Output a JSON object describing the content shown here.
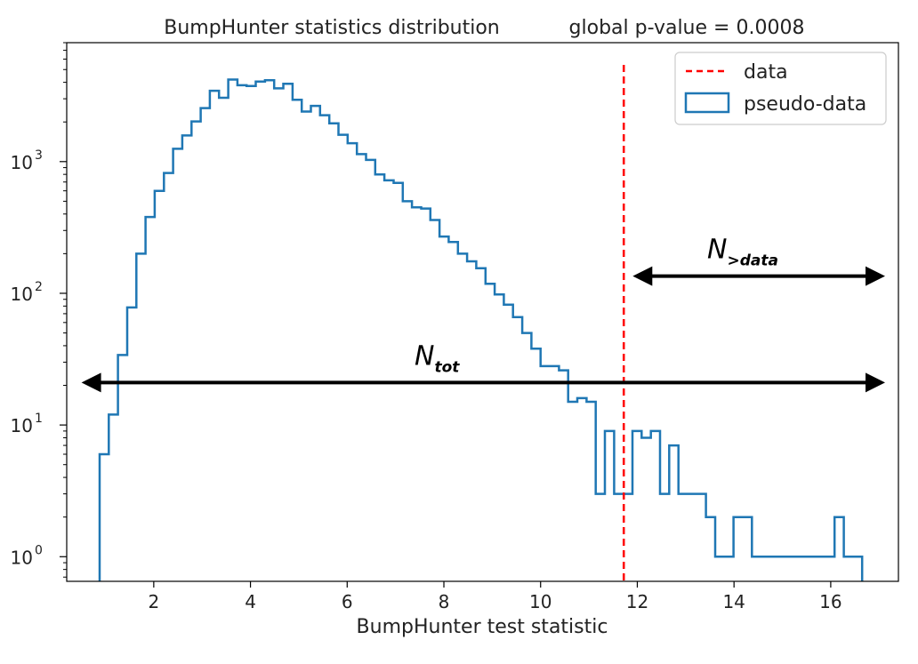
{
  "chart_data": {
    "type": "histogram",
    "title": "BumpHunter statistics distribution",
    "title_right": "global p-value = 0.0008",
    "xlabel": "BumpHunter test statistic",
    "ylabel": "",
    "xlim": [
      0.2,
      17.4
    ],
    "ylim": [
      0.65,
      8000
    ],
    "yscale": "log",
    "grid": false,
    "legend_position": "top-right",
    "x_ticks": [
      "2",
      "4",
      "6",
      "8",
      "10",
      "12",
      "14",
      "16"
    ],
    "y_ticks": [
      {
        "value": 1,
        "base": "10",
        "exp": "0"
      },
      {
        "value": 10,
        "base": "10",
        "exp": "1"
      },
      {
        "value": 100,
        "base": "10",
        "exp": "2"
      },
      {
        "value": 1000,
        "base": "10",
        "exp": "3"
      }
    ],
    "data_line": {
      "x": 11.72,
      "label": "data",
      "color": "#ff0000"
    },
    "pseudo_series": {
      "name": "pseudo-data",
      "color": "#1f77b4",
      "bin_edges": [
        0.88,
        1.07,
        1.26,
        1.45,
        1.64,
        1.83,
        2.02,
        2.21,
        2.4,
        2.59,
        2.78,
        2.97,
        3.16,
        3.35,
        3.54,
        3.73,
        3.92,
        4.11,
        4.3,
        4.49,
        4.68,
        4.87,
        5.06,
        5.25,
        5.44,
        5.63,
        5.82,
        6.01,
        6.2,
        6.39,
        6.58,
        6.77,
        6.96,
        7.15,
        7.34,
        7.53,
        7.72,
        7.91,
        8.1,
        8.29,
        8.48,
        8.67,
        8.86,
        9.05,
        9.24,
        9.43,
        9.62,
        9.81,
        10.0,
        10.19,
        10.38,
        10.57,
        10.76,
        10.95,
        11.14,
        11.33,
        11.52,
        11.71,
        11.9,
        12.09,
        12.28,
        12.47,
        12.66,
        12.85,
        13.04,
        13.23,
        13.42,
        13.61,
        13.8,
        13.99,
        14.18,
        14.37,
        14.56,
        14.75,
        14.94,
        15.13,
        15.32,
        15.51,
        15.7,
        15.89,
        16.08,
        16.27,
        16.46,
        16.65
      ],
      "counts": [
        6,
        12,
        34,
        78,
        200,
        380,
        600,
        820,
        1250,
        1580,
        2020,
        2550,
        3450,
        3050,
        4200,
        3800,
        3750,
        4050,
        4150,
        3600,
        3900,
        2950,
        2400,
        2650,
        2250,
        1950,
        1600,
        1380,
        1140,
        1030,
        800,
        720,
        690,
        500,
        450,
        440,
        360,
        270,
        245,
        200,
        175,
        155,
        118,
        98,
        82,
        66,
        50,
        38,
        28,
        28,
        26,
        15,
        16,
        15,
        3,
        9,
        3,
        3,
        9,
        8,
        9,
        3,
        7,
        3,
        3,
        3,
        2,
        1,
        1,
        2,
        2,
        1,
        1,
        1,
        1,
        1,
        1,
        1,
        1,
        1,
        2,
        1,
        1
      ],
      "counts_note": ""
    },
    "annotations": [
      {
        "main": "N",
        "sub": "tot",
        "x_from": 0.45,
        "x_to": 17.2,
        "y": 21
      },
      {
        "main": "N",
        "sub": ">data",
        "x_from": 11.85,
        "x_to": 17.2,
        "y": 135
      }
    ],
    "legend": [
      {
        "label": "data",
        "style": "dashed-red"
      },
      {
        "label": "pseudo-data",
        "style": "blue-outline-box"
      }
    ]
  }
}
